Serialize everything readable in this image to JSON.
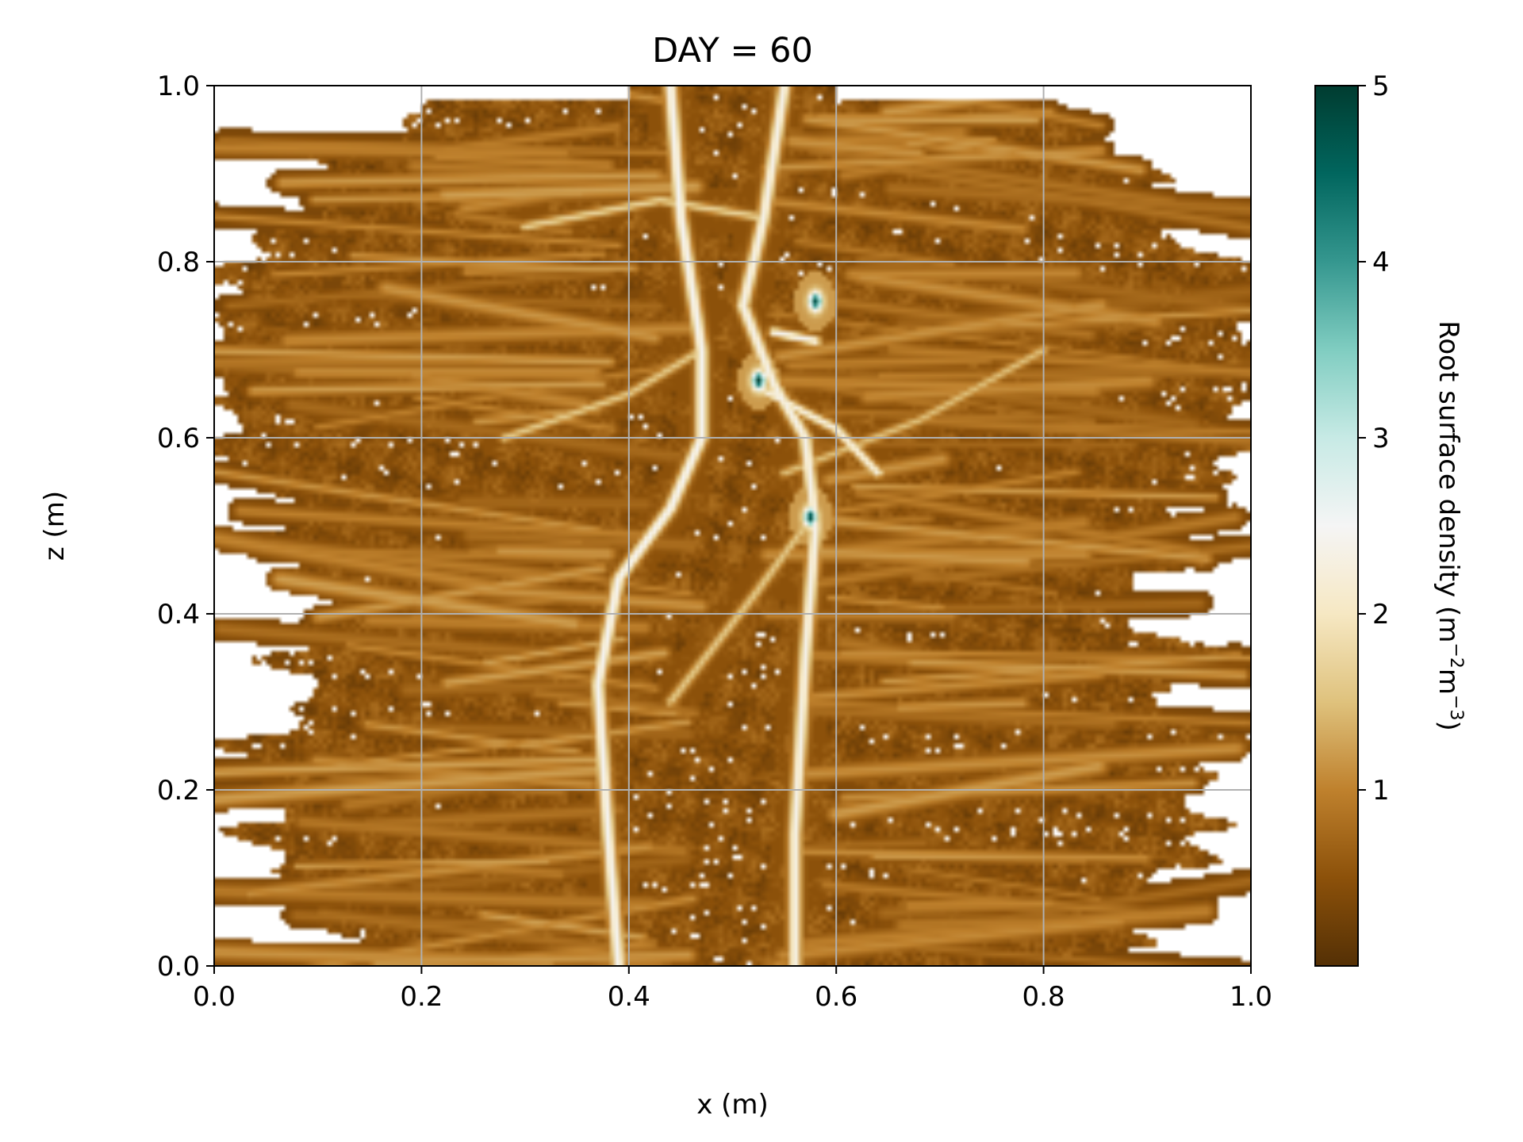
{
  "chart_data": {
    "type": "heatmap",
    "title": "DAY = 60",
    "xlabel": "x (m)",
    "ylabel": "z (m)",
    "xlim": [
      0.0,
      1.0
    ],
    "ylim": [
      0.0,
      1.0
    ],
    "xticks": [
      "0.0",
      "0.2",
      "0.4",
      "0.6",
      "0.8",
      "1.0"
    ],
    "yticks": [
      "0.0",
      "0.2",
      "0.4",
      "0.6",
      "0.8",
      "1.0"
    ],
    "grid": true,
    "colorbar": {
      "label_main": "Root surface density (m",
      "label_exp1": "−2",
      "label_mid": "m",
      "label_exp2": "−3",
      "label_end": ")",
      "range": [
        0,
        5
      ],
      "ticks": [
        "1",
        "2",
        "3",
        "4",
        "5"
      ],
      "colormap_stops": [
        "#543005",
        "#8c510a",
        "#bf812d",
        "#dfc27d",
        "#f6e8c3",
        "#f5f5f5",
        "#c7eae5",
        "#80cdc1",
        "#35978f",
        "#01665e",
        "#003c30"
      ]
    },
    "background_density": 0.5,
    "primary_roots": [
      {
        "points": [
          [
            0.44,
            1.0
          ],
          [
            0.45,
            0.85
          ],
          [
            0.47,
            0.7
          ],
          [
            0.47,
            0.6
          ],
          [
            0.44,
            0.52
          ],
          [
            0.39,
            0.44
          ],
          [
            0.37,
            0.32
          ],
          [
            0.38,
            0.15
          ],
          [
            0.39,
            0.0
          ]
        ],
        "density": 2.0
      },
      {
        "points": [
          [
            0.55,
            1.0
          ],
          [
            0.53,
            0.85
          ],
          [
            0.51,
            0.75
          ],
          [
            0.54,
            0.66
          ],
          [
            0.57,
            0.6
          ],
          [
            0.58,
            0.5
          ],
          [
            0.57,
            0.35
          ],
          [
            0.56,
            0.15
          ],
          [
            0.56,
            0.0
          ]
        ],
        "density": 1.9
      }
    ],
    "lateral_roots": [
      {
        "points": [
          [
            0.52,
            0.66
          ],
          [
            0.6,
            0.61
          ],
          [
            0.64,
            0.56
          ]
        ],
        "density": 1.8
      },
      {
        "points": [
          [
            0.54,
            0.72
          ],
          [
            0.58,
            0.71
          ]
        ],
        "density": 2.0
      },
      {
        "points": [
          [
            0.53,
            0.85
          ],
          [
            0.43,
            0.87
          ],
          [
            0.3,
            0.84
          ]
        ],
        "density": 1.2
      },
      {
        "points": [
          [
            0.47,
            0.7
          ],
          [
            0.4,
            0.65
          ],
          [
            0.28,
            0.6
          ]
        ],
        "density": 1.1
      },
      {
        "points": [
          [
            0.55,
            0.56
          ],
          [
            0.68,
            0.62
          ],
          [
            0.8,
            0.7
          ]
        ],
        "density": 1.0
      },
      {
        "points": [
          [
            0.57,
            0.5
          ],
          [
            0.52,
            0.42
          ],
          [
            0.44,
            0.3
          ]
        ],
        "density": 1.1
      }
    ],
    "hotspots": [
      {
        "x": 0.58,
        "z": 0.755,
        "value": 4.8
      },
      {
        "x": 0.525,
        "z": 0.665,
        "value": 5.0
      },
      {
        "x": 0.575,
        "z": 0.51,
        "value": 4.9
      }
    ]
  }
}
